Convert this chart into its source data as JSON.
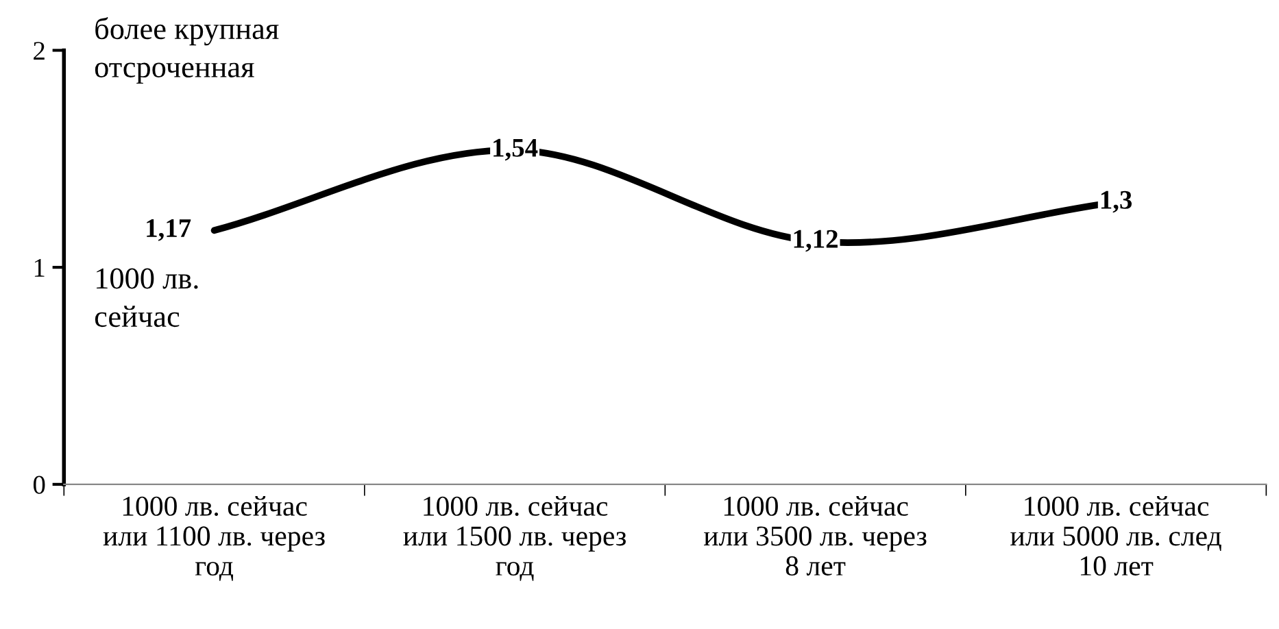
{
  "chart_data": {
    "type": "line",
    "categories": [
      "1000 лв. сейчас\nили 1100 лв. через\nгод",
      "1000 лв. сейчас\nили 1500 лв. через\nгод",
      "1000 лв. сейчас\nили 3500 лв. через\n8 лет",
      "1000 лв. сейчас\nили 5000 лв. след\n10 лет"
    ],
    "series": [
      {
        "color": "#000000",
        "values": [
          1.17,
          1.54,
          1.12,
          1.3
        ],
        "value_labels": [
          "1,17",
          "1,54",
          "1,12",
          "1,3"
        ]
      }
    ],
    "ylim": [
      0,
      2
    ],
    "yticks": [
      0,
      1,
      2
    ],
    "annotations": [
      "более крупная\nотсроченная",
      "1000 лв.\nсейчас"
    ],
    "grid": false,
    "legend": false,
    "line_style": "solid"
  }
}
